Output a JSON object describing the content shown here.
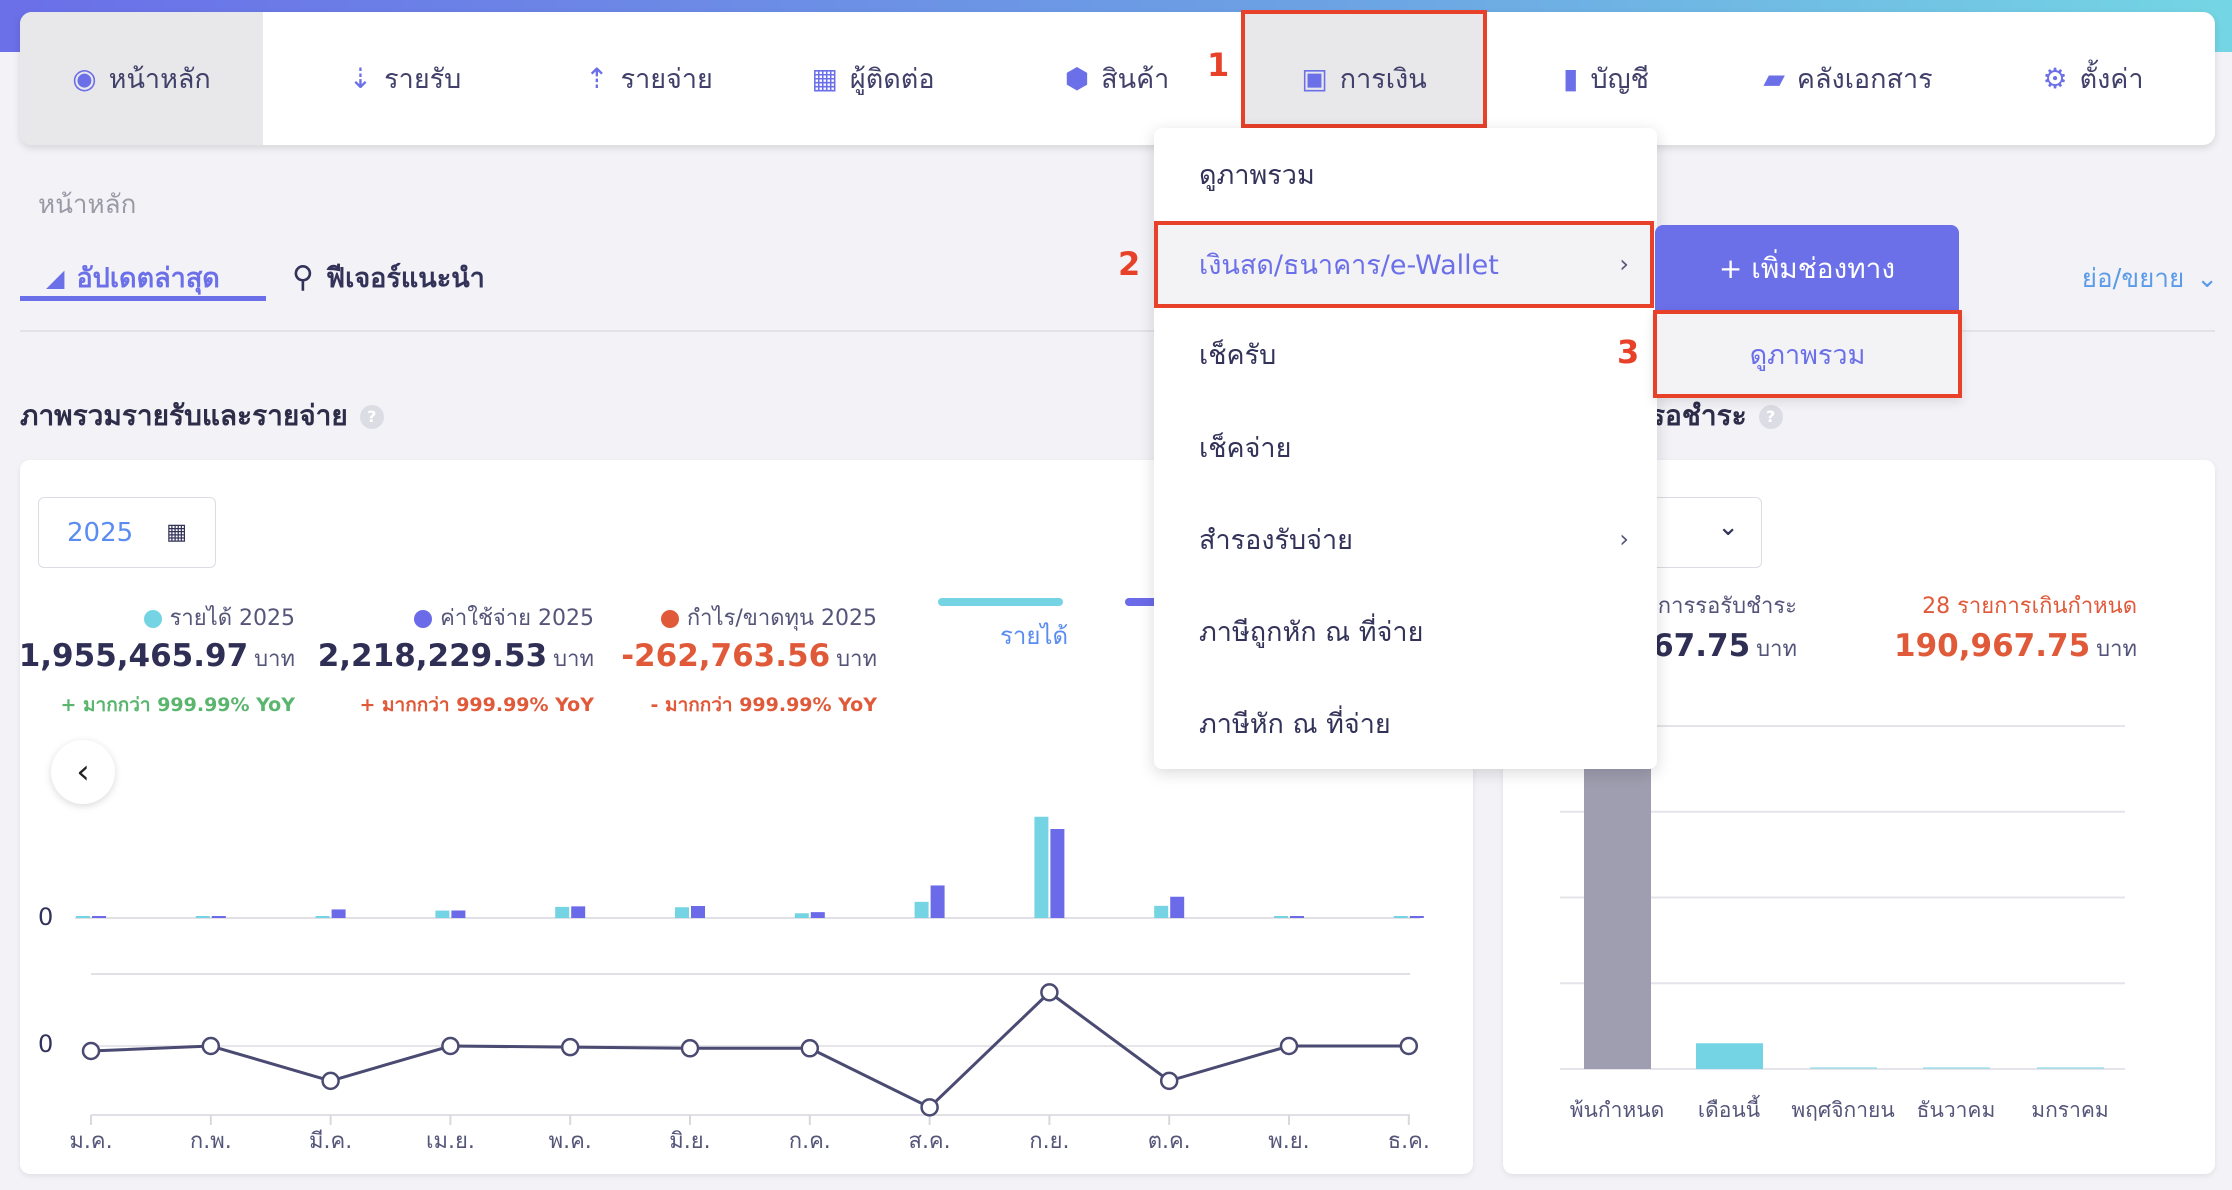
{
  "nav": {
    "items": [
      {
        "label": "หน้าหลัก",
        "icon": "dashboard-icon",
        "glyph": "◉"
      },
      {
        "label": "รายรับ",
        "icon": "income-icon",
        "glyph": "⇣"
      },
      {
        "label": "รายจ่าย",
        "icon": "expense-icon",
        "glyph": "⇡"
      },
      {
        "label": "ผู้ติดต่อ",
        "icon": "contacts-icon",
        "glyph": "▦"
      },
      {
        "label": "สินค้า",
        "icon": "box-icon",
        "glyph": "⬢"
      },
      {
        "label": "การเงิน",
        "icon": "money-icon",
        "glyph": "▣"
      },
      {
        "label": "บัญชี",
        "icon": "ledger-icon",
        "glyph": "▮"
      },
      {
        "label": "คลังเอกสาร",
        "icon": "folder-icon",
        "glyph": "▰"
      },
      {
        "label": "ตั้งค่า",
        "icon": "gear-icon",
        "glyph": "⚙"
      }
    ]
  },
  "annotations": {
    "step1": "1",
    "step2": "2",
    "step3": "3"
  },
  "breadcrumb": "หน้าหลัก",
  "tabs": [
    {
      "label": "อัปเดตล่าสุด",
      "icon": "megaphone-icon",
      "glyph": "📢",
      "active": true
    },
    {
      "label": "ฟีเจอร์แนะนำ",
      "icon": "search-icon",
      "glyph": "⚲",
      "active": false
    }
  ],
  "collapse_label": "ย่อ/ขยาย",
  "overview": {
    "title": "ภาพรวมรายรับและรายจ่าย",
    "year": "2025",
    "stats": [
      {
        "label": "รายได้ 2025",
        "value": "1,955,465.97",
        "unit": "บาท",
        "yoy": "+ มากกว่า 999.99% YoY",
        "dot": "#74d4e4",
        "valcolor": "#2f2f55",
        "yoycolor": "#5ab56e"
      },
      {
        "label": "ค่าใช้จ่าย 2025",
        "value": "2,218,229.53",
        "unit": "บาท",
        "yoy": "+ มากกว่า 999.99% YoY",
        "dot": "#6b6bea",
        "valcolor": "#2f2f55",
        "yoycolor": "#e05a3a"
      },
      {
        "label": "กำไร/ขาดทุน 2025",
        "value": "-262,763.56",
        "unit": "บาท",
        "yoy": "- มากกว่า 999.99% YoY",
        "dot": "#e05a3a",
        "valcolor": "#e05a3a",
        "yoycolor": "#e05a3a"
      }
    ],
    "legend": {
      "income": "รายได้"
    }
  },
  "receivables": {
    "title_visible": "รอชำระ",
    "pending_label_visible": "การรอรับชำระ",
    "pending_value_visible": "967.75",
    "overdue_label": "28 รายการเกินกำหนด",
    "overdue_value": "190,967.75",
    "unit": "บาท"
  },
  "dropdown": {
    "items": [
      {
        "label": "ดูภาพรวม",
        "submenu": false
      },
      {
        "label": "เงินสด/ธนาคาร/e-Wallet",
        "submenu": true,
        "highlighted": true
      },
      {
        "label": "เช็ครับ",
        "submenu": false
      },
      {
        "label": "เช็คจ่าย",
        "submenu": false
      },
      {
        "label": "สำรองรับจ่าย",
        "submenu": true
      },
      {
        "label": "ภาษีถูกหัก ณ ที่จ่าย",
        "submenu": false
      },
      {
        "label": "ภาษีหัก ณ ที่จ่าย",
        "submenu": false
      }
    ],
    "add_channel": "+ เพิ่มช่องทาง",
    "sub_overview": "ดูภาพรวม"
  },
  "colors": {
    "accent": "#6b6fe8",
    "income": "#74d4e4",
    "expense": "#6b6bea",
    "profit_line": "#4a4a72",
    "overdue_bar": "#9e9eb0",
    "annotation": "#e8412a"
  },
  "chart_data": [
    {
      "type": "bar",
      "categories": [
        "ม.ค.",
        "ก.พ.",
        "มี.ค.",
        "เม.ย.",
        "พ.ค.",
        "มิ.ย.",
        "ก.ค.",
        "ส.ค.",
        "ก.ย.",
        "ต.ค.",
        "พ.ย.",
        "ธ.ค."
      ],
      "series": [
        {
          "name": "รายได้",
          "values": [
            19000,
            19000,
            8000,
            85000,
            127000,
            123000,
            54000,
            185000,
            1157000,
            139000,
            19000,
            19000
          ]
        },
        {
          "values": [
            8000,
            20000,
            98000,
            86000,
            133000,
            137000,
            67000,
            372000,
            1017000,
            243000,
            20000,
            20000
          ]
        }
      ],
      "ytick": "0",
      "ylim": [
        0,
        1200000
      ]
    },
    {
      "type": "line",
      "categories": [
        "ม.ค.",
        "ก.พ.",
        "มี.ค.",
        "เม.ย.",
        "พ.ค.",
        "มิ.ย.",
        "ก.ค.",
        "ส.ค.",
        "ก.ย.",
        "ต.ค.",
        "พ.ย.",
        "ธ.ค."
      ],
      "values": [
        -13000,
        0,
        -91000,
        0,
        -3000,
        -6000,
        -6000,
        -160000,
        140000,
        -91000,
        0,
        0
      ],
      "ytick": "0",
      "ylim": [
        -180000,
        188000
      ]
    },
    {
      "type": "bar",
      "categories": [
        "พ้นกำหนด",
        "เดือนนี้",
        "พฤศจิกายน",
        "ธันวาคม",
        "มกราคม"
      ],
      "values": [
        190967.75,
        15000,
        0,
        0,
        0
      ],
      "bar_colors": [
        "#9e9eb0",
        "#74d4e4",
        "#74d4e4",
        "#74d4e4",
        "#74d4e4"
      ],
      "ylim": [
        0,
        200000
      ],
      "grid": true
    }
  ]
}
